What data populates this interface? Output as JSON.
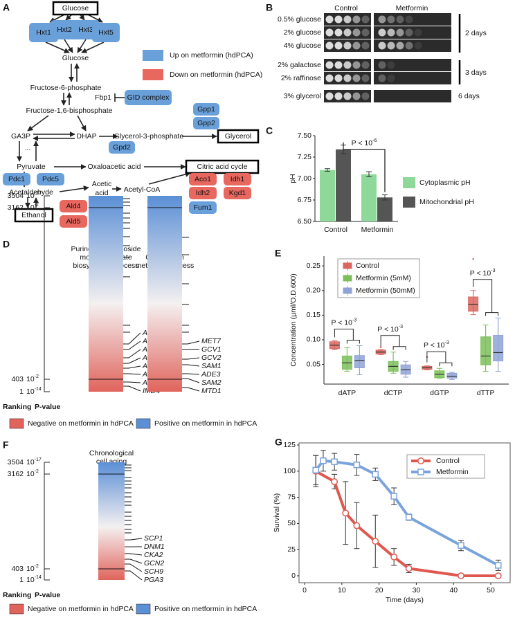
{
  "panel_labels": [
    "A",
    "B",
    "C",
    "D",
    "E",
    "F",
    "G"
  ],
  "pathway": {
    "boxed": [
      "Glucose",
      "Glycerol",
      "Citric acid cycle",
      "Ethanol"
    ],
    "metabolites": [
      "Glucose",
      "Fructose-6-phosphate",
      "Fbp1",
      "Fructose-1,6-bisphosphate",
      "GA3P",
      "DHAP",
      "Glycerol-3-phosphate",
      "...",
      "Pyruvate",
      "Oxaloacetic acid",
      "Acetaldehyde",
      "Acetic",
      "acid",
      "Acetyl-CoA"
    ],
    "proteins": [
      {
        "name": "Hxt1",
        "color": "#6aa0da"
      },
      {
        "name": "Hxt2",
        "color": "#6aa0da"
      },
      {
        "name": "Hxt3",
        "color": "#6aa0da"
      },
      {
        "name": "Hxt5",
        "color": "#6aa0da"
      },
      {
        "name": "GID complex",
        "color": "#6aa0da"
      },
      {
        "name": "Gpp1",
        "color": "#6aa0da"
      },
      {
        "name": "Gpp2",
        "color": "#6aa0da"
      },
      {
        "name": "Gpd2",
        "color": "#6aa0da"
      },
      {
        "name": "Pdc1",
        "color": "#6aa0da"
      },
      {
        "name": "Pdc5",
        "color": "#6aa0da"
      },
      {
        "name": "Aco1",
        "color": "#e8675f"
      },
      {
        "name": "Idh1",
        "color": "#e8675f"
      },
      {
        "name": "Idh2",
        "color": "#e8675f"
      },
      {
        "name": "Kgd1",
        "color": "#e8675f"
      },
      {
        "name": "Fum1",
        "color": "#6aa0da"
      },
      {
        "name": "Ald4",
        "color": "#e8675f"
      },
      {
        "name": "Ald5",
        "color": "#e8675f"
      }
    ],
    "legend": [
      {
        "label": "Up on metformin (hdPCA)",
        "color": "#6aa0da"
      },
      {
        "label": "Down on metformin (hdPCA)",
        "color": "#e8675f"
      }
    ]
  },
  "spot_assay": {
    "columns": [
      "Control",
      "Metformin"
    ],
    "rows": [
      "0.5% glucose",
      "2% glucose",
      "4% glucose",
      "2% galactose",
      "2% raffinose",
      "3% glycerol"
    ],
    "groups": [
      "2 days",
      "3 days",
      "6 days"
    ]
  },
  "chart_data": [
    {
      "type": "bar",
      "categories": [
        "Control",
        "Metformin"
      ],
      "series": [
        {
          "name": "Cytoplasmic pH",
          "color": "#8ed99a",
          "values": [
            7.1,
            7.05
          ],
          "errors": [
            0.015,
            0.03
          ]
        },
        {
          "name": "Mitochondrial pH",
          "color": "#555555",
          "values": [
            7.34,
            6.78
          ],
          "errors": [
            0.05,
            0.03
          ]
        }
      ],
      "y_label": "pH",
      "ylim": [
        6.5,
        7.5
      ],
      "yticks": [
        {
          "value": 6.5,
          "label": "6.50"
        },
        {
          "value": 6.75,
          "label": "6.75"
        },
        {
          "value": 7,
          "label": "7.00"
        },
        {
          "value": 7.25,
          "label": "7.25"
        },
        {
          "value": 7.5,
          "label": "7.50"
        }
      ],
      "annotation": {
        "text": "P < 10",
        "exponent": "-6"
      }
    },
    {
      "type": "box",
      "categories": [
        "dATP",
        "dCTP",
        "dGTP",
        "dTTP"
      ],
      "series": [
        {
          "name": "Control",
          "color": "#d9665f",
          "stats": [
            [
              0.08,
              0.082,
              0.089,
              0.096,
              0.098
            ],
            [
              0.07,
              0.071,
              0.075,
              0.079,
              0.08
            ],
            [
              0.039,
              0.04,
              0.043,
              0.046,
              0.047
            ],
            [
              0.151,
              0.158,
              0.172,
              0.187,
              0.2
            ]
          ],
          "outliers": [
            [],
            [
              0.085
            ],
            [
              0.065
            ],
            [
              0.264
            ]
          ]
        },
        {
          "name": "Metformin (5mM)",
          "color": "#7cbf5a",
          "stats": [
            [
              0.036,
              0.04,
              0.053,
              0.067,
              0.084
            ],
            [
              0.032,
              0.036,
              0.046,
              0.056,
              0.075
            ],
            [
              0.022,
              0.023,
              0.03,
              0.037,
              0.042
            ],
            [
              0.036,
              0.049,
              0.067,
              0.106,
              0.13
            ]
          ],
          "outliers": [
            [],
            [],
            [],
            []
          ]
        },
        {
          "name": "Metformin (50mM)",
          "color": "#8fa3d6",
          "stats": [
            [
              0.029,
              0.043,
              0.058,
              0.068,
              0.088
            ],
            [
              0.024,
              0.03,
              0.039,
              0.049,
              0.056
            ],
            [
              0.019,
              0.022,
              0.026,
              0.032,
              0.034
            ],
            [
              0.036,
              0.057,
              0.074,
              0.109,
              0.144
            ]
          ],
          "outliers": [
            [],
            [],
            [],
            []
          ]
        }
      ],
      "y_label": "Concentration (µml/O.D.600)",
      "ylim": [
        0.01,
        0.27
      ],
      "yticks": [
        0.05,
        {
          "value": 0.1,
          "label": "0.10"
        },
        0.15,
        {
          "value": 0.2,
          "label": "0.20"
        },
        0.25
      ],
      "annotations": [
        {
          "text": "P < 10",
          "exponent": "-3"
        },
        {
          "text": "P < 10",
          "exponent": "-3"
        },
        {
          "text": "P < 10",
          "exponent": "-3"
        },
        {
          "text": "P < 10",
          "exponent": "-3"
        }
      ]
    },
    {
      "type": "line",
      "series": [
        {
          "name": "Control",
          "color": "#e0574f",
          "marker": "circle",
          "x": [
            3,
            8,
            11,
            14,
            19,
            24,
            28,
            42,
            52
          ],
          "values": [
            100,
            90,
            60,
            48,
            33,
            18,
            7,
            0,
            0
          ],
          "errors": [
            15,
            7,
            30,
            22,
            25,
            8,
            4,
            0,
            0
          ]
        },
        {
          "name": "Metformin",
          "color": "#7aa3dc",
          "marker": "square",
          "x": [
            3,
            5,
            8,
            14,
            19,
            24,
            28,
            42,
            52
          ],
          "values": [
            101,
            110,
            109,
            106,
            97,
            76,
            56,
            29,
            10
          ],
          "errors": [
            14,
            10,
            8,
            10,
            6,
            8,
            3,
            5,
            5
          ]
        }
      ],
      "x_label": "Time (days)",
      "y_label": "Survival (%)",
      "xlim": [
        -1.5,
        55.2
      ],
      "ylim": [
        -6.6,
        127
      ],
      "xticks": [
        0,
        10,
        20,
        30,
        40,
        50
      ],
      "yticks": [
        0,
        25,
        50,
        75,
        100,
        125
      ]
    }
  ],
  "panel_d": {
    "axis": {
      "ranks": [
        3504,
        3162,
        403,
        1
      ],
      "pvalues": [
        {
          "base": "10",
          "exponent": "-17"
        },
        {
          "base": "10",
          "exponent": "-2"
        },
        {
          "base": "10",
          "exponent": "-2"
        },
        {
          "base": "10",
          "exponent": "-14"
        }
      ],
      "titles": [
        "Ranking",
        "P-value"
      ]
    },
    "columns": [
      {
        "title": [
          "Purine ribonucleoside",
          "monophosphate",
          "biosynthetic process"
        ],
        "genes": [
          "ADE1",
          "APT1",
          "ADE17",
          "AMD1",
          "ADE16",
          "ATP15",
          "ATP4",
          "IMD4"
        ],
        "gene_ranks": [
          970,
          881,
          748,
          659,
          581,
          492,
          313,
          180
        ],
        "other_ranks": [
          3423,
          3323,
          3222,
          3073,
          2995,
          2917,
          2828,
          2695,
          2551,
          2361,
          2050,
          1271,
          1160
        ]
      },
      {
        "title": [
          "One-carbon",
          "metabolic process"
        ],
        "genes": [
          "MET7",
          "GCV1",
          "GCV2",
          "SAM1",
          "ADE3",
          "SAM2",
          "MTD1"
        ],
        "gene_ranks": [
          970,
          881,
          726,
          637,
          492,
          414,
          135
        ],
        "other_ranks": [
          2684,
          2405,
          1938,
          1605,
          1271,
          1160
        ]
      }
    ],
    "legend": [
      {
        "label": "Negative on metformin in hdPCA",
        "color": "#e0645c"
      },
      {
        "label": "Positive on metformin in hdPCA",
        "color": "#5b8fd6"
      }
    ]
  },
  "panel_f": {
    "axis": {
      "ranks": [
        3504,
        3162,
        403,
        1
      ],
      "pvalues": [
        {
          "base": "10",
          "exponent": "-17"
        },
        {
          "base": "10",
          "exponent": "-2"
        },
        {
          "base": "10",
          "exponent": "-2"
        },
        {
          "base": "10",
          "exponent": "-14"
        }
      ],
      "titles": [
        "Ranking",
        "P-value"
      ]
    },
    "columns": [
      {
        "title": [
          "Chronological",
          "cell aging"
        ],
        "genes": [
          "SCP1",
          "DNM1",
          "CKA2",
          "GCN2",
          "SCH9",
          "PGA3"
        ],
        "gene_ranks": [
          1247,
          1046,
          845,
          684,
          544,
          327
        ],
        "other_ranks": [
          3424,
          3343,
          3263,
          3061,
          2960,
          2860,
          2759,
          2618,
          2497,
          2356,
          2255,
          2054,
          1933,
          1812,
          1692,
          1551,
          1450
        ]
      }
    ],
    "legend": [
      {
        "label": "Negative on metformin in hdPCA",
        "color": "#e0645c"
      },
      {
        "label": "Positive on metformin in hdPCA",
        "color": "#5b8fd6"
      }
    ]
  }
}
